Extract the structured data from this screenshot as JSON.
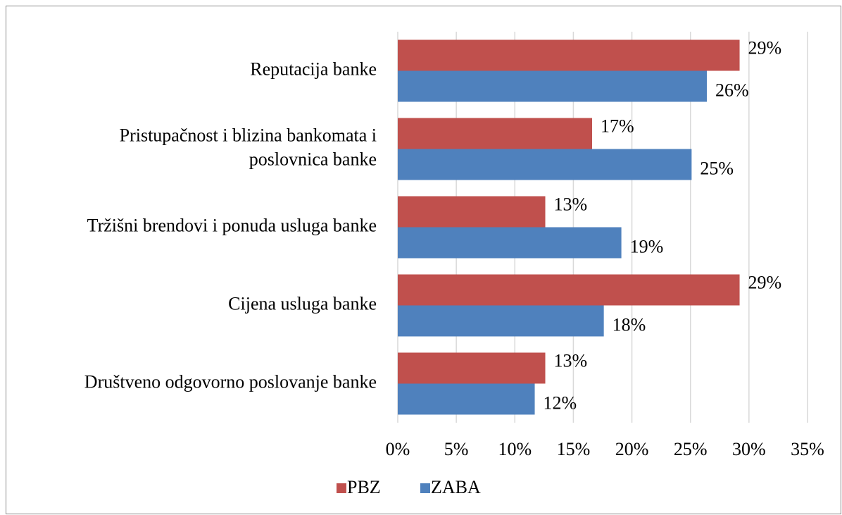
{
  "chart_data": {
    "type": "bar",
    "orientation": "horizontal",
    "categories": [
      "Reputacija banke",
      "Pristupačnost i blizina bankomata  i\nposlovnica banke",
      "Tržišni brendovi i ponuda usluga banke",
      "Cijena usluga banke",
      "Društveno odgovorno poslovanje banke"
    ],
    "series": [
      {
        "name": "PBZ",
        "color": "#c0504d",
        "values": [
          29.2,
          16.6,
          12.6,
          29.2,
          12.6
        ],
        "value_labels": [
          "29%",
          "17%",
          "13%",
          "29%",
          "13%"
        ]
      },
      {
        "name": "ZABA",
        "color": "#4f81bd",
        "values": [
          26.4,
          25.1,
          19.1,
          17.6,
          11.7
        ],
        "value_labels": [
          "26%",
          "25%",
          "19%",
          "18%",
          "12%"
        ]
      }
    ],
    "xlim": [
      0,
      35
    ],
    "xticks": [
      {
        "value": 0,
        "label": "0%"
      },
      {
        "value": 5,
        "label": "5%"
      },
      {
        "value": 10,
        "label": "10%"
      },
      {
        "value": 15,
        "label": "15%"
      },
      {
        "value": 20,
        "label": "20%"
      },
      {
        "value": 25,
        "label": "25%"
      },
      {
        "value": 30,
        "label": "30%"
      },
      {
        "value": 35,
        "label": "35%"
      }
    ],
    "grid": true,
    "legend": "bottom"
  }
}
